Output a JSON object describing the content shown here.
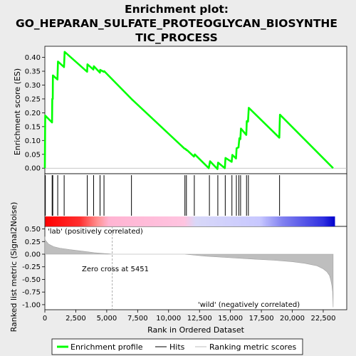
{
  "chart_data": {
    "type": "line",
    "title_lines": [
      "Enrichment plot:",
      "GO_HEPARAN_SULFATE_PROTEOGLYCAN_BIOSYNTHE",
      "TIC_PROCESS"
    ],
    "top_panel": {
      "ylabel": "Enrichment score (ES)",
      "ylim": [
        -0.02,
        0.44
      ],
      "yticks": [
        0.0,
        0.05,
        0.1,
        0.15,
        0.2,
        0.25,
        0.3,
        0.35,
        0.4
      ],
      "ytick_labels": [
        "0.00",
        "0.05",
        "0.10",
        "0.15",
        "0.20",
        "0.25",
        "0.30",
        "0.35",
        "0.40"
      ],
      "series": [
        {
          "name": "Enrichment profile",
          "color": "#00ff00",
          "x": [
            0,
            30,
            580,
            600,
            640,
            650,
            1020,
            1060,
            1550,
            1600,
            3420,
            3440,
            3920,
            3960,
            4450,
            4470,
            4760,
            4800,
            7000,
            11300,
            11360,
            11450,
            11500,
            12050,
            12120,
            13250,
            13350,
            13950,
            14000,
            14550,
            14600,
            15100,
            15150,
            15450,
            15500,
            15650,
            15720,
            15800,
            15850,
            16280,
            16320,
            16420,
            16480,
            18950,
            19000,
            23300
          ],
          "y": [
            0.0,
            0.19,
            0.165,
            0.25,
            0.25,
            0.335,
            0.32,
            0.385,
            0.365,
            0.42,
            0.348,
            0.375,
            0.356,
            0.368,
            0.345,
            0.355,
            0.348,
            0.35,
            0.25,
            0.07,
            0.07,
            0.065,
            0.065,
            0.042,
            0.05,
            0.0,
            0.025,
            -0.003,
            0.02,
            0.0,
            0.037,
            0.023,
            0.048,
            0.035,
            0.072,
            0.075,
            0.108,
            0.105,
            0.143,
            0.12,
            0.17,
            0.168,
            0.218,
            0.11,
            0.193,
            0.0
          ]
        }
      ]
    },
    "hits": [
      40,
      590,
      640,
      1040,
      1560,
      3430,
      3940,
      4460,
      4780,
      7000,
      11320,
      11440,
      12080,
      13300,
      13980,
      14580,
      15120,
      15480,
      15680,
      15820,
      16300,
      16450,
      18970
    ],
    "bottom_panel": {
      "ylabel": "Ranked list metric (Signal2Noise)",
      "xlabel": "Rank in Ordered Dataset",
      "ylim": [
        -1.1,
        0.55
      ],
      "yticks": [
        0.5,
        0.25,
        0.0,
        -0.25,
        -0.5,
        -0.75,
        -1.0
      ],
      "ytick_labels": [
        "0.50",
        "0.25",
        "0.00",
        "-0.25",
        "-0.50",
        "-0.75",
        "-1.00"
      ],
      "xlim": [
        0,
        24400
      ],
      "xticks": [
        0,
        2500,
        5000,
        7500,
        10000,
        12500,
        15000,
        17500,
        20000,
        22500
      ],
      "xtick_labels": [
        "0",
        "2,500",
        "5,000",
        "7,500",
        "10,000",
        "12,500",
        "15,000",
        "17,500",
        "20,000",
        "22,500"
      ],
      "metric_curve": {
        "x": [
          0,
          30,
          300,
          700,
          1200,
          2000,
          3000,
          4000,
          4700,
          5200,
          5451,
          11300,
          13000,
          15000,
          17000,
          18500,
          20000,
          21000,
          22000,
          22500,
          22800,
          23000,
          23100,
          23200,
          23260,
          23300
        ],
        "y": [
          0.35,
          0.28,
          0.2,
          0.15,
          0.12,
          0.09,
          0.06,
          0.03,
          0.015,
          0.005,
          0.0,
          0.0,
          -0.04,
          -0.07,
          -0.1,
          -0.12,
          -0.15,
          -0.18,
          -0.23,
          -0.29,
          -0.35,
          -0.42,
          -0.5,
          -0.62,
          -0.75,
          -1.05
        ]
      },
      "zero_cross": 5451,
      "zero_cross_label": "Zero cross at 5451",
      "pos_label": "'lab' (positively correlated)",
      "neg_label": "'wild' (negatively correlated)"
    },
    "xmax_dataset": 23300,
    "legend": [
      {
        "label": "Enrichment profile",
        "color": "#00ff00",
        "style": "thick-line"
      },
      {
        "label": "Hits",
        "color": "#000000",
        "style": "line"
      },
      {
        "label": "Ranking metric scores",
        "color": "#bebebe",
        "style": "line"
      }
    ],
    "colors": {
      "profile": "#00ff00",
      "metric_fill": "#bebebe",
      "bar_pos_strong": "#ff0000",
      "bar_pos_light": "#ffb4c8",
      "bar_neg_light": "#c8c8ff",
      "bar_neg_strong": "#0000ff",
      "pos_label": "#ff0000",
      "neg_label": "#0000ff"
    }
  }
}
